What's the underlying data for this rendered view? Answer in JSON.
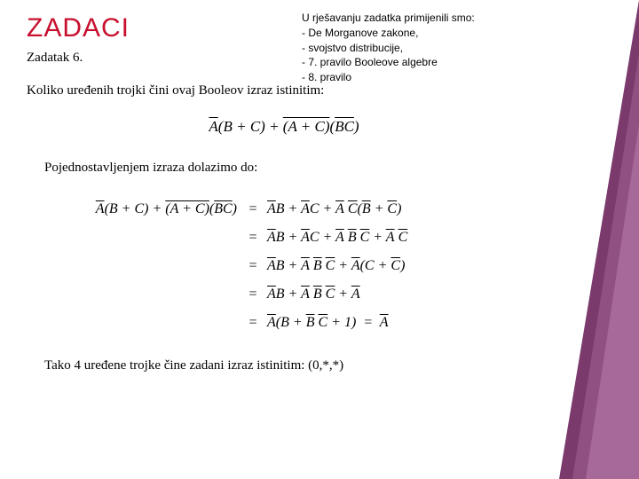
{
  "title": "ZADACI",
  "subtitle": "Zadatak 6.",
  "notes": {
    "heading": "U rješavanju zadatka primijenili smo:",
    "items": [
      "- De Morganove zakone,",
      "-   svojstvo distribucije,",
      "-   7. pravilo Booleove algebre",
      "-   8. pravilo"
    ]
  },
  "question": "Koliko uređenih trojki čini ovaj Booleov izraz istinitim:",
  "simplify": "Pojednostavljenjem izraza dolazimo do:",
  "conclusion_prefix": "Tako 4 uređene trojke čine zadani izraz istinitim:  ",
  "conclusion_value": "(0,*,*)",
  "colors": {
    "title": "#c8102e",
    "text": "#000000",
    "background": "#ffffff",
    "accent1": "#7a3a6b",
    "accent2": "#9a5a8b",
    "accent3": "#b87aa8"
  },
  "expression": {
    "main": "A̅(B+C) + (A+C)‾(BC)‾",
    "steps": [
      "A̅B + A̅C + A̅C̅(B̅+C̅)",
      "A̅B + A̅C + A̅B̅C̅ + A̅C̅",
      "A̅B + A̅B̅C̅ + A̅(C+C̅)",
      "A̅B + A̅B̅C̅ + A̅",
      "A̅(B + B̅C̅ + 1) = A̅"
    ]
  }
}
